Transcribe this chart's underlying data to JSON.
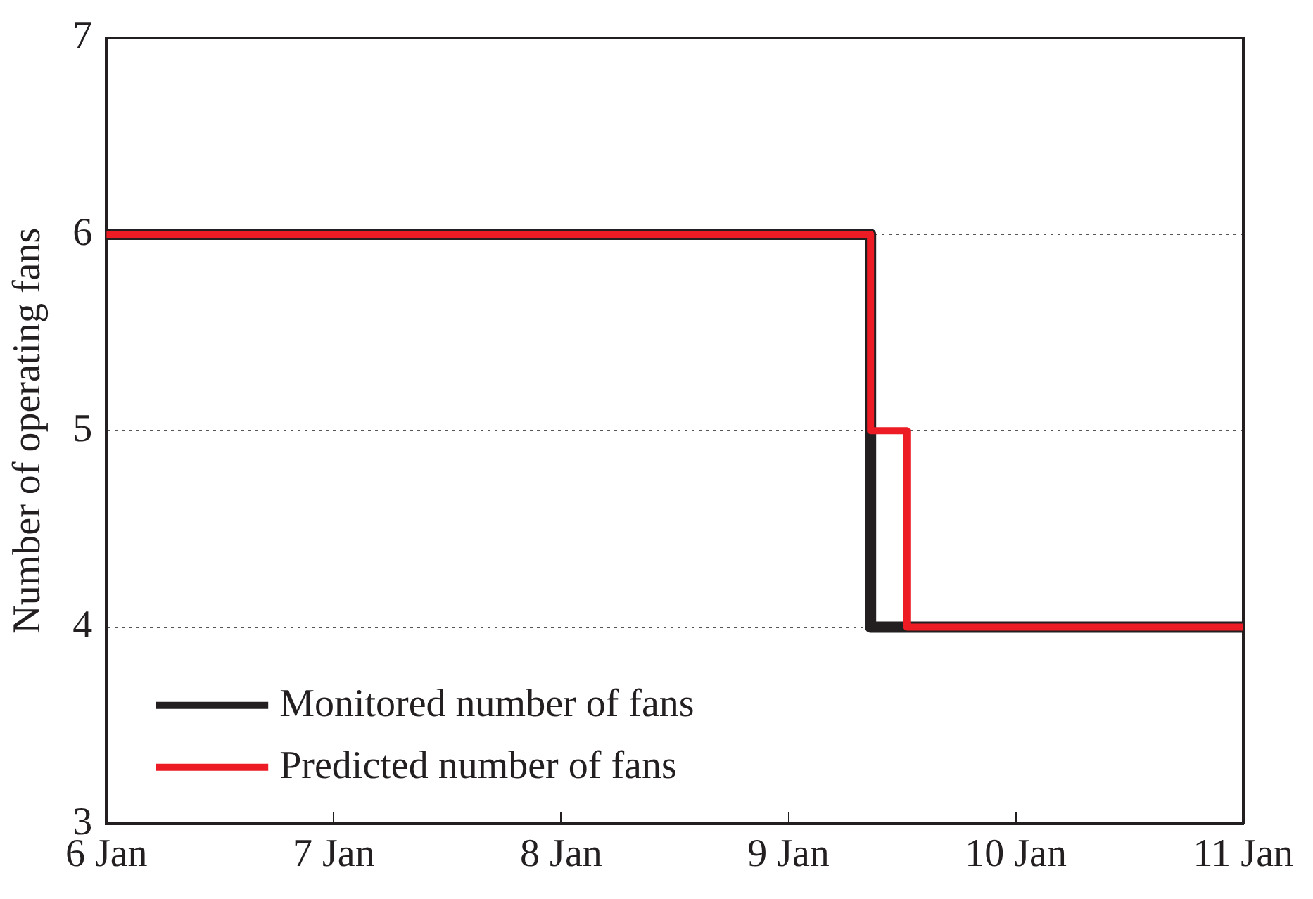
{
  "chart_data": {
    "type": "step",
    "ylabel": "Number of operating fans",
    "series": [
      {
        "name": "Monitored number of fans",
        "color": "#231f20",
        "x": [
          "--01-06",
          "--01-09T08:40",
          "--01-11"
        ],
        "values": [
          6,
          4,
          4
        ]
      },
      {
        "name": "Predicted number of fans",
        "color": "#ed1c24",
        "x": [
          "--01-06",
          "--01-09T08:40",
          "--01-09T12:30",
          "--01-11"
        ],
        "values": [
          6,
          5,
          4,
          4
        ]
      }
    ],
    "xlim": [
      "--01-06",
      "--01-11"
    ],
    "xticks": [
      {
        "value": "--01-06",
        "label": "6 Jan"
      },
      {
        "value": "--01-07",
        "label": "7 Jan"
      },
      {
        "value": "--01-08",
        "label": "8 Jan"
      },
      {
        "value": "--01-09",
        "label": "9 Jan"
      },
      {
        "value": "--01-10",
        "label": "10 Jan"
      },
      {
        "value": "--01-11",
        "label": "11 Jan"
      }
    ],
    "ylim": [
      3,
      7
    ],
    "yticks": [
      3,
      4,
      5,
      6,
      7
    ],
    "grid": "y",
    "legend": "bottom left",
    "marker": "none",
    "line_style": "solid"
  }
}
